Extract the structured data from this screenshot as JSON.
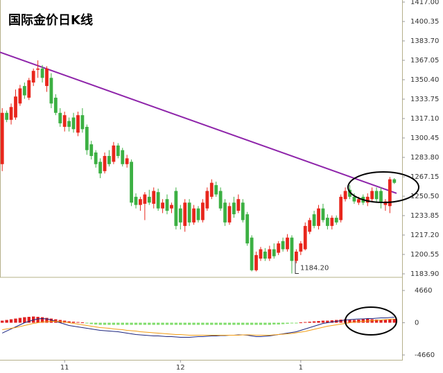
{
  "chart_data": [
    {
      "type": "candlestick",
      "title": "国际金价日K线",
      "up_color": "#e8261c",
      "down_color": "#3cb043",
      "ylim": [
        1183.9,
        1417
      ],
      "yticks": [
        {
          "value": 1417,
          "label": "1417.00"
        },
        {
          "value": 1400.35,
          "label": "1400.35"
        },
        {
          "value": 1383.7,
          "label": "1383.70"
        },
        {
          "value": 1367.05,
          "label": "1367.05"
        },
        {
          "value": 1350.4,
          "label": "1350.40"
        },
        {
          "value": 1333.75,
          "label": "1333.75"
        },
        {
          "value": 1317.1,
          "label": "1317.10"
        },
        {
          "value": 1300.45,
          "label": "1300.45"
        },
        {
          "value": 1283.8,
          "label": "1283.80"
        },
        {
          "value": 1267.15,
          "label": "1267.15"
        },
        {
          "value": 1250.5,
          "label": "1250.50"
        },
        {
          "value": 1233.85,
          "label": "1233.85"
        },
        {
          "value": 1217.2,
          "label": "1217.20"
        },
        {
          "value": 1200.55,
          "label": "1200.55"
        },
        {
          "value": 1183.9,
          "label": "1183.90"
        }
      ],
      "categories": [
        null,
        null,
        null,
        null,
        null,
        null,
        null,
        null,
        null,
        null,
        null,
        null,
        null,
        null,
        "11",
        null,
        null,
        null,
        null,
        null,
        null,
        null,
        null,
        null,
        null,
        null,
        null,
        null,
        null,
        null,
        null,
        null,
        null,
        null,
        null,
        null,
        null,
        null,
        null,
        null,
        "12",
        null,
        null,
        null,
        null,
        null,
        null,
        null,
        null,
        null,
        null,
        null,
        null,
        null,
        null,
        null,
        null,
        null,
        null,
        null,
        null,
        null,
        null,
        null,
        null,
        null,
        null,
        "1",
        null,
        null,
        null,
        null,
        null,
        null,
        null,
        null,
        null,
        null,
        null,
        null,
        null,
        null,
        null,
        null,
        null,
        null,
        null,
        null,
        null
      ],
      "ohlc": [
        [
          1278,
          1326,
          1272,
          1322
        ],
        [
          1322,
          1324,
          1314,
          1316
        ],
        [
          1316,
          1330,
          1312,
          1327
        ],
        [
          1318,
          1342,
          1316,
          1336
        ],
        [
          1330,
          1346,
          1328,
          1343
        ],
        [
          1345,
          1348,
          1334,
          1337
        ],
        [
          1335,
          1352,
          1333,
          1350
        ],
        [
          1348,
          1360,
          1345,
          1358
        ],
        [
          1359,
          1367,
          1352,
          1360
        ],
        [
          1360,
          1363,
          1348,
          1352
        ],
        [
          1345,
          1362,
          1340,
          1360
        ],
        [
          1352,
          1356,
          1326,
          1330
        ],
        [
          1335,
          1338,
          1320,
          1322
        ],
        [
          1322,
          1326,
          1310,
          1313
        ],
        [
          1310,
          1323,
          1306,
          1320
        ],
        [
          1315,
          1318,
          1306,
          1310
        ],
        [
          1318,
          1322,
          1305,
          1308
        ],
        [
          1305,
          1323,
          1302,
          1320
        ],
        [
          1320,
          1326,
          1305,
          1308
        ],
        [
          1310,
          1312,
          1286,
          1290
        ],
        [
          1295,
          1298,
          1282,
          1285
        ],
        [
          1288,
          1290,
          1275,
          1278
        ],
        [
          1280,
          1283,
          1266,
          1270
        ],
        [
          1272,
          1288,
          1270,
          1285
        ],
        [
          1285,
          1290,
          1276,
          1278
        ],
        [
          1280,
          1297,
          1278,
          1294
        ],
        [
          1294,
          1296,
          1283,
          1285
        ],
        [
          1290,
          1292,
          1276,
          1278
        ],
        [
          1278,
          1286,
          1275,
          1283
        ],
        [
          1280,
          1282,
          1242,
          1245
        ],
        [
          1250,
          1253,
          1240,
          1243
        ],
        [
          1243,
          1250,
          1238,
          1248
        ],
        [
          1244,
          1254,
          1230,
          1252
        ],
        [
          1250,
          1256,
          1243,
          1245
        ],
        [
          1244,
          1258,
          1240,
          1255
        ],
        [
          1254,
          1257,
          1238,
          1240
        ],
        [
          1240,
          1248,
          1236,
          1245
        ],
        [
          1248,
          1252,
          1235,
          1238
        ],
        [
          1240,
          1245,
          1236,
          1243
        ],
        [
          1255,
          1258,
          1222,
          1225
        ],
        [
          1240,
          1243,
          1222,
          1228
        ],
        [
          1225,
          1248,
          1220,
          1245
        ],
        [
          1245,
          1248,
          1225,
          1228
        ],
        [
          1228,
          1243,
          1226,
          1240
        ],
        [
          1240,
          1242,
          1228,
          1230
        ],
        [
          1230,
          1248,
          1228,
          1245
        ],
        [
          1240,
          1258,
          1238,
          1255
        ],
        [
          1250,
          1265,
          1248,
          1262
        ],
        [
          1260,
          1263,
          1250,
          1252
        ],
        [
          1255,
          1258,
          1238,
          1240
        ],
        [
          1245,
          1248,
          1225,
          1228
        ],
        [
          1228,
          1245,
          1226,
          1242
        ],
        [
          1245,
          1250,
          1232,
          1235
        ],
        [
          1238,
          1252,
          1236,
          1248
        ],
        [
          1245,
          1248,
          1228,
          1230
        ],
        [
          1235,
          1237,
          1208,
          1210
        ],
        [
          1215,
          1217,
          1186,
          1187
        ],
        [
          1187,
          1203,
          1186,
          1200
        ],
        [
          1197,
          1207,
          1195,
          1205
        ],
        [
          1203,
          1206,
          1195,
          1197
        ],
        [
          1197,
          1208,
          1195,
          1205
        ],
        [
          1205,
          1210,
          1197,
          1199
        ],
        [
          1202,
          1212,
          1200,
          1210
        ],
        [
          1212,
          1215,
          1203,
          1205
        ],
        [
          1205,
          1218,
          1203,
          1215
        ],
        [
          1215,
          1217,
          1184.2,
          1195
        ],
        [
          1195,
          1205,
          1193,
          1203
        ],
        [
          1203,
          1212,
          1200,
          1210
        ],
        [
          1205,
          1228,
          1204,
          1225
        ],
        [
          1220,
          1232,
          1218,
          1230
        ],
        [
          1235,
          1238,
          1223,
          1225
        ],
        [
          1225,
          1243,
          1222,
          1240
        ],
        [
          1240,
          1244,
          1228,
          1230
        ],
        [
          1232,
          1235,
          1222,
          1225
        ],
        [
          1225,
          1234,
          1222,
          1232
        ],
        [
          1232,
          1234,
          1226,
          1228
        ],
        [
          1230,
          1252,
          1228,
          1250
        ],
        [
          1248,
          1258,
          1246,
          1255
        ],
        [
          1256,
          1260,
          1248,
          1250
        ],
        [
          1250,
          1253,
          1244,
          1246
        ],
        [
          1245,
          1250,
          1243,
          1248
        ],
        [
          1250,
          1252,
          1243,
          1245
        ],
        [
          1245,
          1253,
          1242,
          1250
        ],
        [
          1248,
          1258,
          1246,
          1255
        ],
        [
          1255,
          1258,
          1245,
          1248
        ],
        [
          1255,
          1258,
          1240,
          1245
        ],
        [
          1243,
          1248,
          1238,
          1246
        ],
        [
          1242,
          1267,
          1236,
          1265
        ],
        [
          1265,
          1266,
          1261,
          1262
        ]
      ],
      "trendline": {
        "color": "#8e24aa",
        "values": [
          1374,
          1253
        ]
      },
      "low_annotation": {
        "value": 1184.2,
        "label": "1184.20"
      }
    },
    {
      "type": "macd",
      "ylim": [
        -4660,
        4660
      ],
      "yticks": [
        4660,
        0,
        -4660
      ],
      "pos_color": "#e02020",
      "neg_color": "#7fdc6a",
      "bars": [
        300,
        400,
        500,
        600,
        700,
        800,
        850,
        900,
        850,
        800,
        700,
        600,
        500,
        400,
        300,
        200,
        150,
        100,
        50,
        -50,
        -200,
        -250,
        -300,
        -300,
        -300,
        -300,
        -300,
        -300,
        -300,
        -300,
        -300,
        -300,
        -300,
        -300,
        -300,
        -300,
        -300,
        -300,
        -300,
        -300,
        -300,
        -300,
        -300,
        -300,
        -300,
        -300,
        -300,
        -300,
        -300,
        -300,
        -300,
        -300,
        -300,
        -300,
        -300,
        -300,
        -300,
        -300,
        -300,
        -300,
        -300,
        -250,
        -250,
        -200,
        -150,
        -100,
        -50,
        50,
        100,
        150,
        200,
        250,
        300,
        300,
        350,
        400,
        450,
        500,
        450,
        400,
        450,
        500,
        550,
        500,
        450,
        400,
        450,
        500,
        550
      ],
      "lines": [
        {
          "color": "#1a237e",
          "values": [
            -1500,
            -1200,
            -900,
            -600,
            -300,
            0,
            200,
            400,
            550,
            600,
            550,
            400,
            200,
            0,
            -200,
            -400,
            -500,
            -600,
            -700,
            -800,
            -900,
            -1000,
            -1100,
            -1150,
            -1200,
            -1250,
            -1300,
            -1400,
            -1500,
            -1600,
            -1700,
            -1750,
            -1800,
            -1850,
            -1900,
            -1900,
            -1950,
            -2000,
            -2000,
            -2050,
            -2100,
            -2100,
            -2100,
            -2050,
            -2000,
            -2000,
            -1950,
            -1900,
            -1900,
            -1850,
            -1850,
            -1800,
            -1800,
            -1750,
            -1750,
            -1800,
            -1900,
            -2000,
            -2000,
            -1950,
            -1900,
            -1800,
            -1700,
            -1600,
            -1500,
            -1400,
            -1300,
            -1100,
            -900,
            -700,
            -500,
            -300,
            -100,
            0,
            100,
            200,
            300,
            400,
            450,
            500,
            550,
            550,
            600,
            600,
            650,
            700,
            700,
            750,
            800
          ]
        },
        {
          "color": "#f39c12",
          "values": [
            -1000,
            -900,
            -800,
            -700,
            -550,
            -400,
            -250,
            -100,
            0,
            100,
            150,
            200,
            200,
            150,
            100,
            0,
            -100,
            -200,
            -300,
            -400,
            -500,
            -600,
            -700,
            -750,
            -800,
            -900,
            -950,
            -1000,
            -1100,
            -1150,
            -1200,
            -1300,
            -1350,
            -1400,
            -1450,
            -1500,
            -1550,
            -1600,
            -1650,
            -1700,
            -1700,
            -1750,
            -1800,
            -1800,
            -1800,
            -1800,
            -1800,
            -1800,
            -1800,
            -1800,
            -1800,
            -1800,
            -1800,
            -1800,
            -1750,
            -1750,
            -1750,
            -1800,
            -1800,
            -1800,
            -1800,
            -1750,
            -1700,
            -1650,
            -1600,
            -1550,
            -1450,
            -1350,
            -1250,
            -1100,
            -950,
            -800,
            -650,
            -500,
            -400,
            -300,
            -200,
            -100,
            0,
            100,
            150,
            200,
            250,
            300,
            350,
            400,
            450,
            500,
            550
          ]
        }
      ]
    }
  ]
}
